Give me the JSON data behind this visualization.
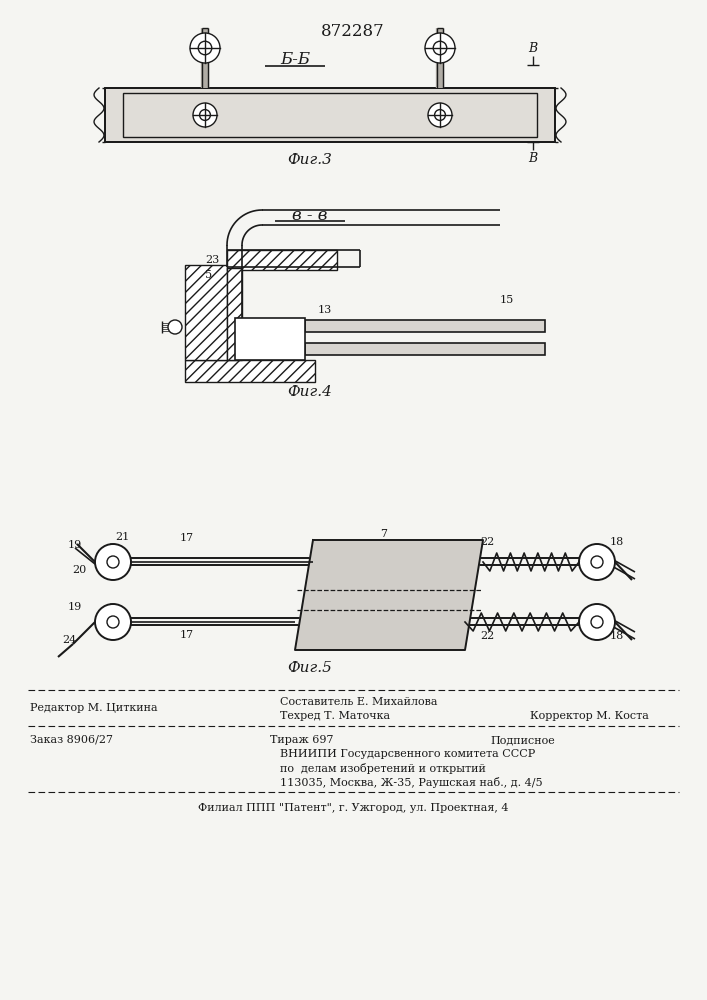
{
  "patent_number": "872287",
  "bg_color": "#f5f5f2",
  "line_color": "#1a1a1a",
  "fig3_label": "Фиг.3",
  "fig4_label": "Фиг.4",
  "fig5_label": "Фиг.5",
  "section_bb_label": "Б-Б",
  "section_vv_label": "в - в",
  "editor_line": "Редактор М. Циткина",
  "composer_line": "Составитель Е. Михайлова",
  "techred_line": "Техред Т. Маточка",
  "corrector_line": "Корректор М. Коста",
  "order_line": "Заказ 8906/27",
  "tirazh_line": "Тираж 697",
  "podpisnoe_line": "Подписное",
  "vnipi_line1": "ВНИИПИ Государсвенного комитета СССР",
  "vnipi_line2": "по  делам изобретений и открытий",
  "vnipi_line3": "113035, Москва, Ж-35, Раушская наб., д. 4/5",
  "filial_line": "Филиал ППП \"Патент\", г. Ужгород, ул. Проектная, 4"
}
